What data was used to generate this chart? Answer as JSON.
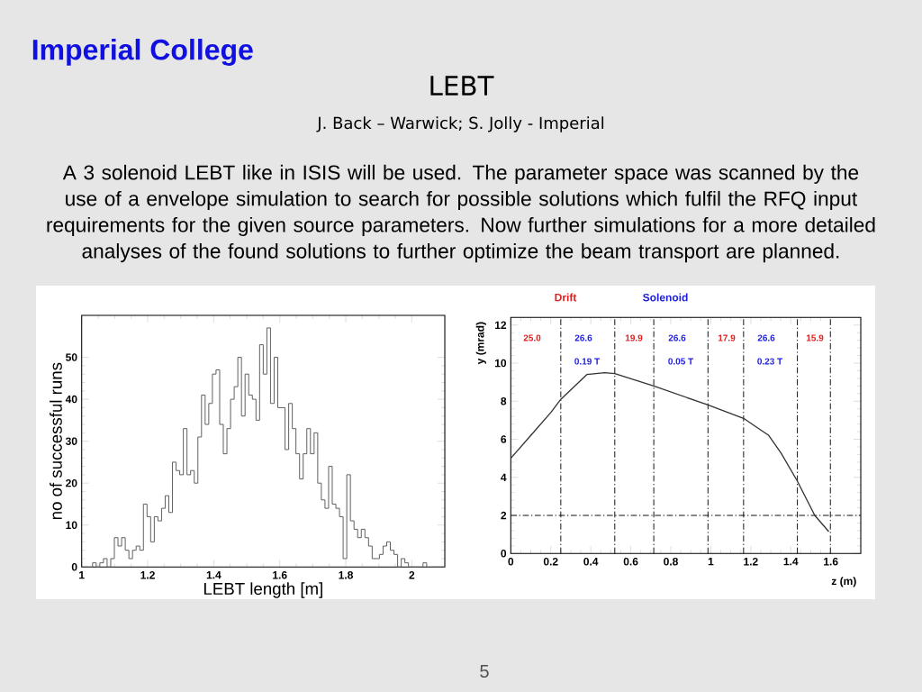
{
  "chart_data": [
    {
      "type": "other",
      "title": "LEBT",
      "subtitle": "J. Back – Warwick; S. Jolly - Imperial",
      "annotations": [
        "Imperial College",
        "A 3 solenoid LEBT like in ISIS will be used. The parameter space was scanned by the use of a envelope simulation to search for possible solutions which fulfil the RFQ input requirements for the given source parameters. Now further simulations for a more detailed analyses of the found solutions to further optimize the beam transport are planned.",
        "5"
      ]
    },
    {
      "type": "histogram",
      "xlabel": "LEBT length [m]",
      "ylabel": "no of successful runs",
      "color": "#555555",
      "bins": [
        1,
        1.011,
        1.022,
        1.033,
        1.044,
        1.055,
        1.066,
        1.077,
        1.088,
        1.099,
        1.11,
        1.121,
        1.132,
        1.143,
        1.154,
        1.165,
        1.176,
        1.187,
        1.198,
        1.209,
        1.22,
        1.231,
        1.242,
        1.253,
        1.264,
        1.275,
        1.286,
        1.297,
        1.308,
        1.319,
        1.33,
        1.341,
        1.352,
        1.363,
        1.374,
        1.385,
        1.396,
        1.407,
        1.418,
        1.429,
        1.44,
        1.451,
        1.462,
        1.473,
        1.484,
        1.495,
        1.506,
        1.517,
        1.528,
        1.539,
        1.55,
        1.561,
        1.572,
        1.583,
        1.594,
        1.605,
        1.616,
        1.627,
        1.638,
        1.649,
        1.66,
        1.671,
        1.682,
        1.693,
        1.704,
        1.715,
        1.726,
        1.737,
        1.748,
        1.759,
        1.77,
        1.781,
        1.792,
        1.803,
        1.814,
        1.825,
        1.836,
        1.847,
        1.858,
        1.869,
        1.88,
        1.891,
        1.902,
        1.913,
        1.924,
        1.935,
        1.946,
        1.957,
        1.968,
        1.979,
        1.99,
        2.001,
        2.012,
        2.023,
        2.034,
        2.045,
        2.056,
        2.067,
        2.078,
        2.089,
        2.1
      ],
      "values": [
        0,
        0,
        0,
        1,
        0,
        1,
        2,
        0,
        2,
        7,
        5,
        7,
        4,
        2,
        4,
        5,
        4,
        15,
        12,
        6,
        12,
        11,
        14,
        17,
        13,
        25,
        23,
        22,
        33,
        22,
        23,
        20,
        31,
        41,
        34,
        39,
        46,
        47,
        34,
        27,
        33,
        40,
        43,
        50,
        36,
        46,
        41,
        40,
        35,
        53,
        46,
        57,
        39,
        50,
        38,
        38,
        28,
        39,
        33,
        27,
        21,
        27,
        33,
        27,
        32,
        20,
        16,
        14,
        24,
        15,
        14,
        12,
        2,
        22,
        11,
        9,
        7,
        9,
        7,
        5,
        2,
        2,
        3,
        5,
        6,
        4,
        3,
        0,
        2,
        1,
        0,
        0,
        0,
        0,
        1,
        0,
        0,
        0,
        0,
        0
      ],
      "xlim": [
        1,
        2.1
      ],
      "ylim": [
        0,
        60
      ],
      "xticks": [
        1,
        1.2,
        1.4,
        1.6,
        1.8,
        2
      ],
      "yticks": [
        0,
        10,
        20,
        30,
        40,
        50
      ]
    },
    {
      "type": "line",
      "xlabel": "z (m)",
      "ylabel": "y (mrad)",
      "color": "#333333",
      "x": [
        0,
        0.1,
        0.2,
        0.25,
        0.38,
        0.47,
        0.52,
        0.715,
        0.986,
        1.164,
        1.22,
        1.29,
        1.35,
        1.433,
        1.52,
        1.59
      ],
      "values": [
        5.0,
        6.2,
        7.4,
        8.1,
        9.4,
        9.5,
        9.45,
        8.8,
        7.8,
        7.1,
        6.7,
        6.2,
        5.3,
        3.8,
        2.0,
        1.15
      ],
      "xlim": [
        0,
        1.75
      ],
      "ylim": [
        0,
        12.4
      ],
      "xticks": [
        0,
        0.2,
        0.4,
        0.6,
        0.8,
        1,
        1.2,
        1.4,
        1.6
      ],
      "yticks": [
        0,
        2,
        4,
        6,
        8,
        10,
        12
      ],
      "ref_lines": [
        {
          "axis": "x",
          "value": 0.25,
          "line_style": "dashed"
        },
        {
          "axis": "x",
          "value": 0.52,
          "line_style": "dashed"
        },
        {
          "axis": "x",
          "value": 0.715,
          "line_style": "dashed"
        },
        {
          "axis": "x",
          "value": 0.986,
          "line_style": "dashed"
        },
        {
          "axis": "x",
          "value": 1.164,
          "line_style": "dashed"
        },
        {
          "axis": "x",
          "value": 1.433,
          "line_style": "dashed"
        },
        {
          "axis": "x",
          "value": 1.598,
          "line_style": "dashed"
        },
        {
          "axis": "y",
          "value": 2,
          "line_style": "dashed"
        }
      ],
      "annotations": [
        "Drift",
        "Solenoid",
        "25.0",
        "26.6",
        "0.19 T",
        "19.9",
        "26.6",
        "0.05 T",
        "17.9",
        "26.6",
        "0.23 T",
        "15.9"
      ]
    }
  ]
}
